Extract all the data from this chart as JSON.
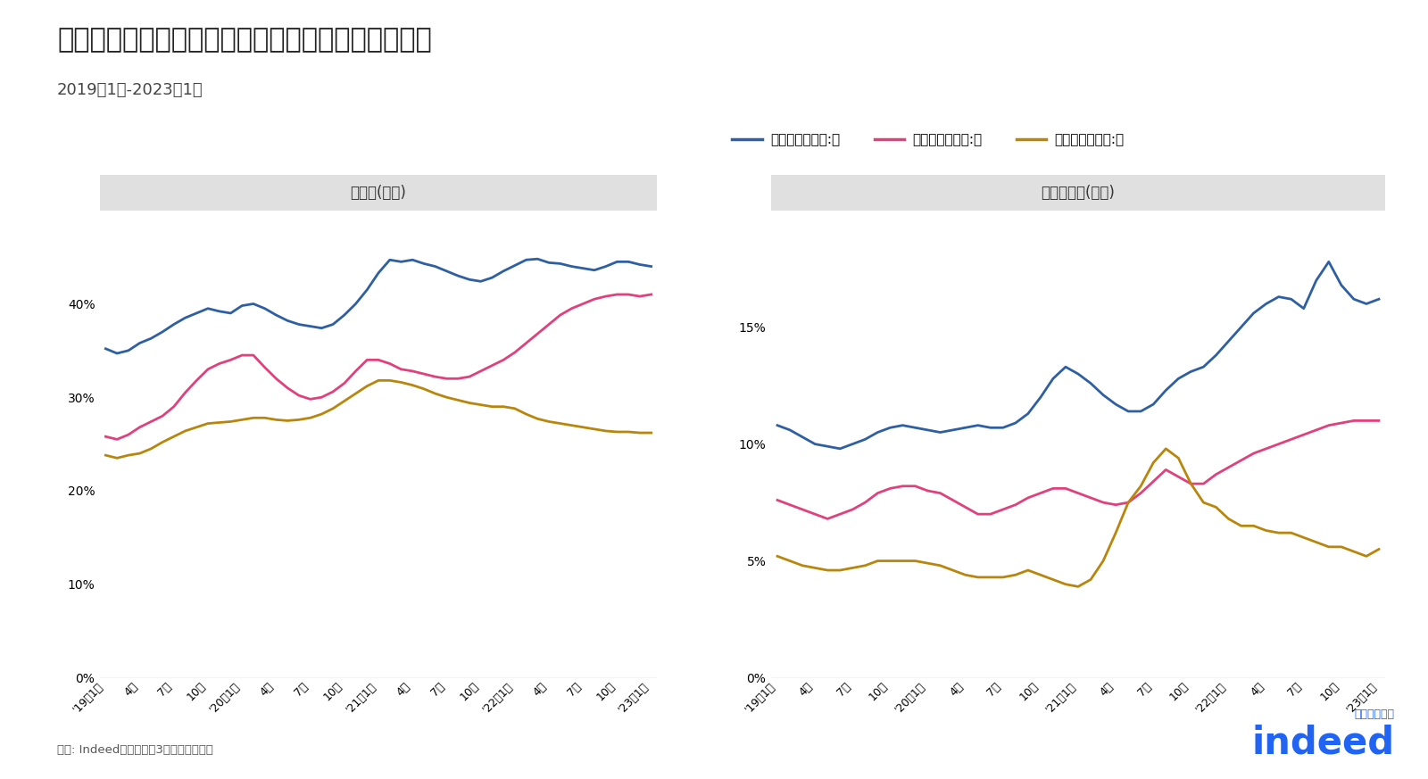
{
  "title": "女性従業員が多い職種を中心に言及割合は増加傾向",
  "subtitle": "2019年1月-2023年1月",
  "source": "出所: Indeed。データは3ヶ月移動平均。",
  "panel1_title": "正社員(無期)",
  "panel2_title": "正社員以外(有期)",
  "legend_labels": [
    "女性従業員割合:大",
    "女性従業員割合:中",
    "女性従業員割合:小"
  ],
  "colors": [
    "#2E5FA3",
    "#E0407B",
    "#B8860B"
  ],
  "x_labels": [
    "'19年1月",
    "4月",
    "7月",
    "10月",
    "'20年1月",
    "4月",
    "7月",
    "10月",
    "'21年1月",
    "4月",
    "7月",
    "10月",
    "'22年1月",
    "4月",
    "7月",
    "10月",
    "'23年1月"
  ],
  "panel1_ylim": [
    0,
    0.5
  ],
  "panel1_yticks": [
    0,
    0.1,
    0.2,
    0.3,
    0.4
  ],
  "panel2_ylim": [
    0,
    0.2
  ],
  "panel2_yticks": [
    0,
    0.05,
    0.1,
    0.15
  ],
  "panel1_large": [
    0.352,
    0.347,
    0.35,
    0.358,
    0.363,
    0.37,
    0.378,
    0.385,
    0.39,
    0.395,
    0.392,
    0.39,
    0.398,
    0.4,
    0.395,
    0.388,
    0.382,
    0.378,
    0.376,
    0.374,
    0.378,
    0.388,
    0.4,
    0.415,
    0.433,
    0.447,
    0.445,
    0.447,
    0.443,
    0.44,
    0.435,
    0.43,
    0.426,
    0.424,
    0.428,
    0.435,
    0.441,
    0.447,
    0.448,
    0.444,
    0.443,
    0.44,
    0.438,
    0.436,
    0.44,
    0.445,
    0.445,
    0.442,
    0.44
  ],
  "panel1_mid": [
    0.258,
    0.255,
    0.26,
    0.268,
    0.274,
    0.28,
    0.29,
    0.305,
    0.318,
    0.33,
    0.336,
    0.34,
    0.345,
    0.345,
    0.332,
    0.32,
    0.31,
    0.302,
    0.298,
    0.3,
    0.306,
    0.315,
    0.328,
    0.34,
    0.34,
    0.336,
    0.33,
    0.328,
    0.325,
    0.322,
    0.32,
    0.32,
    0.322,
    0.328,
    0.334,
    0.34,
    0.348,
    0.358,
    0.368,
    0.378,
    0.388,
    0.395,
    0.4,
    0.405,
    0.408,
    0.41,
    0.41,
    0.408,
    0.41
  ],
  "panel1_small": [
    0.238,
    0.235,
    0.238,
    0.24,
    0.245,
    0.252,
    0.258,
    0.264,
    0.268,
    0.272,
    0.273,
    0.274,
    0.276,
    0.278,
    0.278,
    0.276,
    0.275,
    0.276,
    0.278,
    0.282,
    0.288,
    0.296,
    0.304,
    0.312,
    0.318,
    0.318,
    0.316,
    0.313,
    0.309,
    0.304,
    0.3,
    0.297,
    0.294,
    0.292,
    0.29,
    0.29,
    0.288,
    0.282,
    0.277,
    0.274,
    0.272,
    0.27,
    0.268,
    0.266,
    0.264,
    0.263,
    0.263,
    0.262,
    0.262
  ],
  "panel2_large": [
    0.108,
    0.106,
    0.103,
    0.1,
    0.099,
    0.098,
    0.1,
    0.102,
    0.105,
    0.107,
    0.108,
    0.107,
    0.106,
    0.105,
    0.106,
    0.107,
    0.108,
    0.107,
    0.107,
    0.109,
    0.113,
    0.12,
    0.128,
    0.133,
    0.13,
    0.126,
    0.121,
    0.117,
    0.114,
    0.114,
    0.117,
    0.123,
    0.128,
    0.131,
    0.133,
    0.138,
    0.144,
    0.15,
    0.156,
    0.16,
    0.163,
    0.162,
    0.158,
    0.17,
    0.178,
    0.168,
    0.162,
    0.16,
    0.162
  ],
  "panel2_mid": [
    0.076,
    0.074,
    0.072,
    0.07,
    0.068,
    0.07,
    0.072,
    0.075,
    0.079,
    0.081,
    0.082,
    0.082,
    0.08,
    0.079,
    0.076,
    0.073,
    0.07,
    0.07,
    0.072,
    0.074,
    0.077,
    0.079,
    0.081,
    0.081,
    0.079,
    0.077,
    0.075,
    0.074,
    0.075,
    0.079,
    0.084,
    0.089,
    0.086,
    0.083,
    0.083,
    0.087,
    0.09,
    0.093,
    0.096,
    0.098,
    0.1,
    0.102,
    0.104,
    0.106,
    0.108,
    0.109,
    0.11,
    0.11,
    0.11
  ],
  "panel2_small": [
    0.052,
    0.05,
    0.048,
    0.047,
    0.046,
    0.046,
    0.047,
    0.048,
    0.05,
    0.05,
    0.05,
    0.05,
    0.049,
    0.048,
    0.046,
    0.044,
    0.043,
    0.043,
    0.043,
    0.044,
    0.046,
    0.044,
    0.042,
    0.04,
    0.039,
    0.042,
    0.05,
    0.062,
    0.075,
    0.082,
    0.092,
    0.098,
    0.094,
    0.083,
    0.075,
    0.073,
    0.068,
    0.065,
    0.065,
    0.063,
    0.062,
    0.062,
    0.06,
    0.058,
    0.056,
    0.056,
    0.054,
    0.052,
    0.055
  ],
  "background_color": "#FFFFFF",
  "panel_header_bg": "#E0E0E0",
  "indeed_blue": "#2164F3",
  "footer_color": "#555555"
}
